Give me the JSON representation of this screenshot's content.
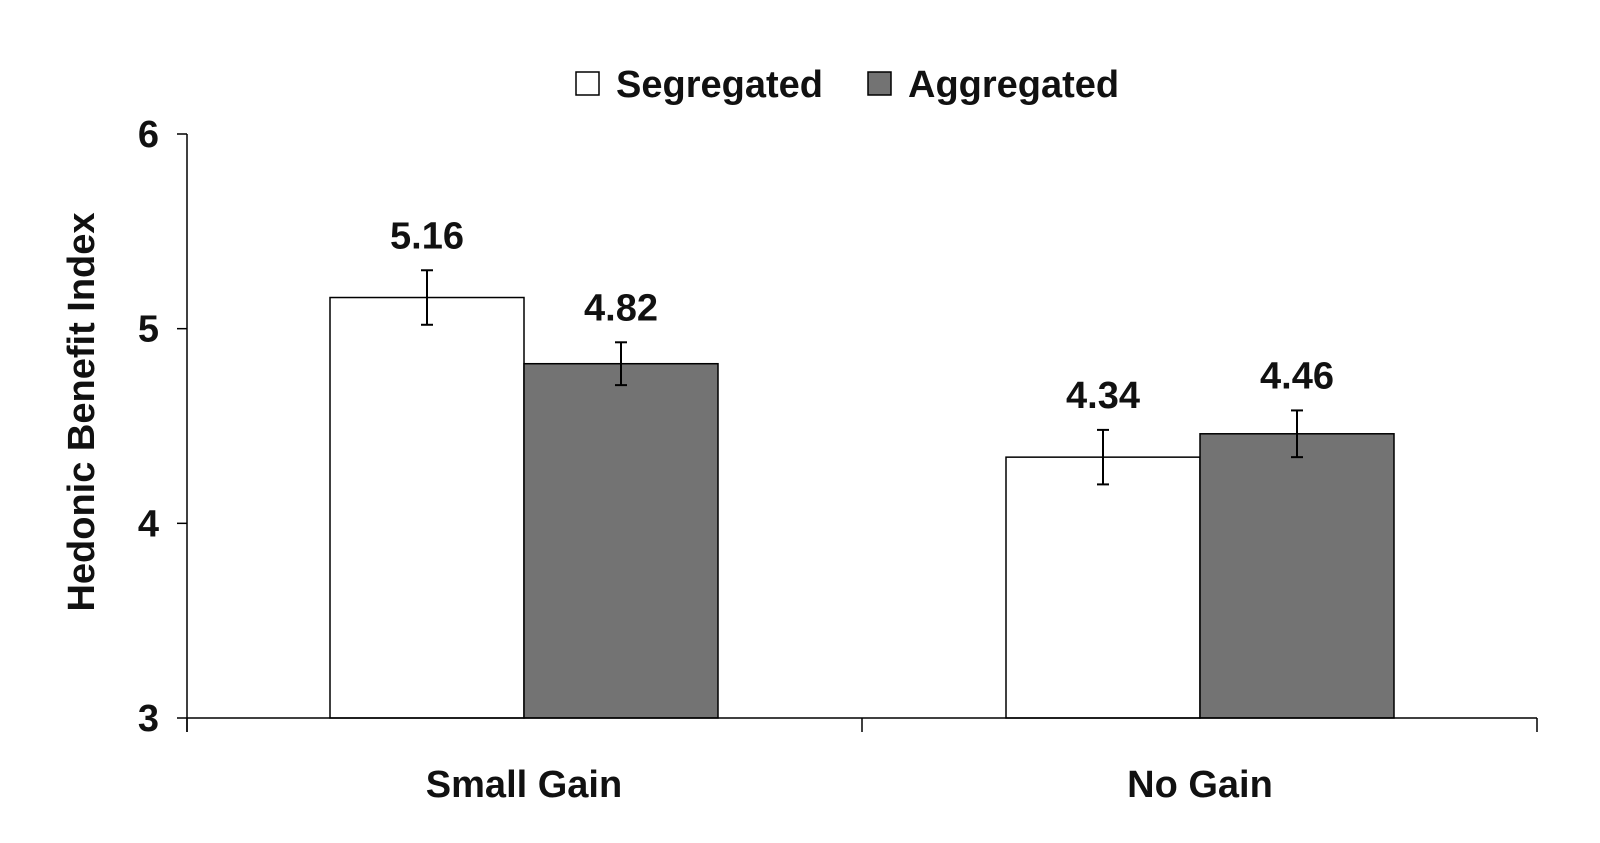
{
  "chart_data": {
    "type": "bar",
    "title": "",
    "xlabel": "",
    "ylabel": "Hedonic Benefit Index",
    "ylim": [
      3,
      6
    ],
    "yticks": [
      "3",
      "4",
      "5",
      "6"
    ],
    "grid": false,
    "legend_position": "top-center",
    "categories": [
      "Small Gain",
      "No Gain"
    ],
    "series": [
      {
        "name": "Segregated",
        "color": "#ffffff",
        "values": [
          5.16,
          4.34
        ],
        "labels": [
          "5.16",
          "4.34"
        ],
        "error": [
          0.14,
          0.14
        ]
      },
      {
        "name": "Aggregated",
        "color": "#737373",
        "values": [
          4.82,
          4.46
        ],
        "labels": [
          "4.82",
          "4.46"
        ],
        "error": [
          0.11,
          0.12
        ]
      }
    ]
  }
}
